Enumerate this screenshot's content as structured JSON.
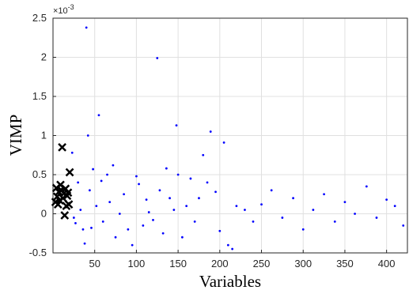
{
  "chart_data": {
    "type": "scatter",
    "title": "",
    "xlabel": "Variables",
    "ylabel": "VIMP",
    "y_exponent_label": "×10",
    "y_exponent_power": "-3",
    "xlim": [
      0,
      425
    ],
    "ylim": [
      -0.5,
      2.5
    ],
    "xticks": [
      50,
      100,
      150,
      200,
      250,
      300,
      350,
      400
    ],
    "xtick_labels": [
      "50",
      "100",
      "150",
      "200",
      "250",
      "300",
      "350",
      "400"
    ],
    "yticks": [
      -0.5,
      0,
      0.5,
      1,
      1.5,
      2,
      2.5
    ],
    "ytick_labels": [
      "-0.5",
      "0",
      "0.5",
      "1",
      "1.5",
      "2",
      "2.5"
    ],
    "grid": true,
    "colors": {
      "dots": "#0000ff",
      "crosses": "#000000",
      "grid": "#e0e0e0",
      "axes": "#262626"
    },
    "series": [
      {
        "marker": "x",
        "color": "#000000",
        "points": [
          [
            3,
            0.15
          ],
          [
            4,
            0.33
          ],
          [
            5,
            0.22
          ],
          [
            6,
            0.12
          ],
          [
            7,
            0.28
          ],
          [
            8,
            0.17
          ],
          [
            9,
            0.37
          ],
          [
            10,
            0.3
          ],
          [
            11,
            0.85
          ],
          [
            12,
            0.2
          ],
          [
            13,
            0.26
          ],
          [
            14,
            -0.02
          ],
          [
            15,
            0.32
          ],
          [
            16,
            0.1
          ],
          [
            17,
            0.23
          ],
          [
            18,
            0.27
          ],
          [
            19,
            0.12
          ],
          [
            20,
            0.53
          ]
        ]
      },
      {
        "marker": "dot",
        "color": "#0000ff",
        "points": [
          [
            23,
            0.78
          ],
          [
            25,
            -0.05
          ],
          [
            27,
            -0.12
          ],
          [
            30,
            0.4
          ],
          [
            33,
            0.05
          ],
          [
            36,
            -0.2
          ],
          [
            38,
            -0.38
          ],
          [
            40,
            2.38
          ],
          [
            42,
            1.0
          ],
          [
            44,
            0.3
          ],
          [
            46,
            -0.18
          ],
          [
            48,
            0.57
          ],
          [
            52,
            0.1
          ],
          [
            55,
            1.26
          ],
          [
            58,
            0.42
          ],
          [
            60,
            -0.1
          ],
          [
            65,
            0.5
          ],
          [
            68,
            0.15
          ],
          [
            72,
            0.62
          ],
          [
            75,
            -0.3
          ],
          [
            80,
            0.0
          ],
          [
            85,
            0.25
          ],
          [
            90,
            -0.2
          ],
          [
            95,
            -0.4
          ],
          [
            100,
            0.48
          ],
          [
            103,
            0.38
          ],
          [
            108,
            -0.15
          ],
          [
            112,
            0.18
          ],
          [
            115,
            0.02
          ],
          [
            120,
            -0.08
          ],
          [
            125,
            1.99
          ],
          [
            128,
            0.3
          ],
          [
            132,
            -0.25
          ],
          [
            136,
            0.58
          ],
          [
            140,
            0.2
          ],
          [
            145,
            0.05
          ],
          [
            148,
            1.13
          ],
          [
            150,
            0.5
          ],
          [
            155,
            -0.3
          ],
          [
            160,
            0.1
          ],
          [
            165,
            0.45
          ],
          [
            170,
            -0.1
          ],
          [
            175,
            0.2
          ],
          [
            180,
            0.75
          ],
          [
            185,
            0.4
          ],
          [
            189,
            1.05
          ],
          [
            195,
            0.28
          ],
          [
            200,
            -0.22
          ],
          [
            205,
            0.91
          ],
          [
            210,
            -0.4
          ],
          [
            215,
            -0.45
          ],
          [
            220,
            0.1
          ],
          [
            230,
            0.05
          ],
          [
            240,
            -0.1
          ],
          [
            250,
            0.12
          ],
          [
            262,
            0.3
          ],
          [
            275,
            -0.05
          ],
          [
            288,
            0.2
          ],
          [
            300,
            -0.2
          ],
          [
            312,
            0.05
          ],
          [
            325,
            0.25
          ],
          [
            338,
            -0.1
          ],
          [
            350,
            0.15
          ],
          [
            362,
            0.0
          ],
          [
            376,
            0.35
          ],
          [
            388,
            -0.05
          ],
          [
            400,
            0.18
          ],
          [
            410,
            0.1
          ],
          [
            420,
            -0.15
          ]
        ]
      }
    ]
  }
}
